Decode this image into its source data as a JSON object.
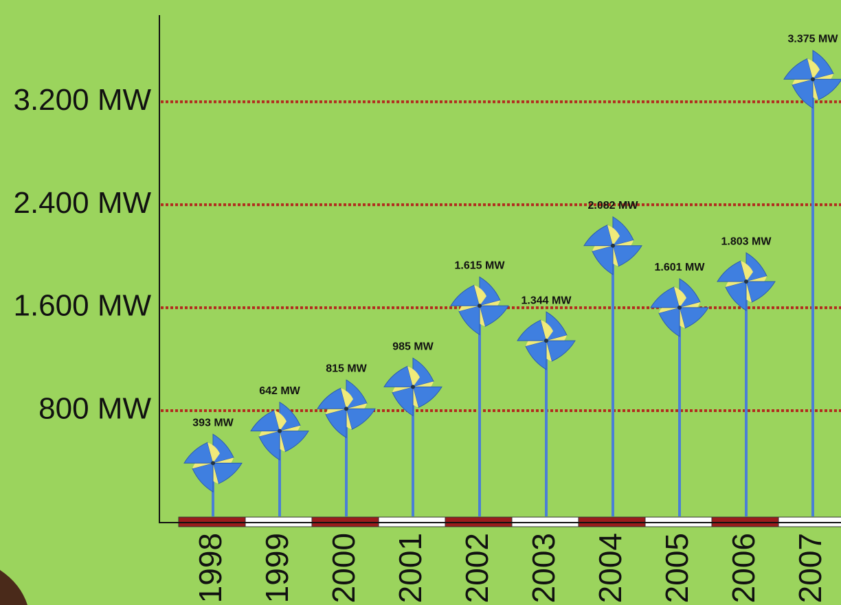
{
  "chart_data": {
    "type": "pinwheel",
    "categories": [
      "1998",
      "1999",
      "2000",
      "2001",
      "2002",
      "2003",
      "2004",
      "2005",
      "2006",
      "2007"
    ],
    "values": [
      393,
      642,
      815,
      985,
      1615,
      1344,
      2082,
      1601,
      1803,
      3375
    ],
    "value_labels": [
      "393 MW",
      "642 MW",
      "815 MW",
      "985 MW",
      "1.615 MW",
      "1.344 MW",
      "2.082 MW",
      "1.601 MW",
      "1.803 MW",
      "3.375 MW"
    ],
    "ylim": [
      0,
      3900
    ],
    "yticks": [
      {
        "value": 800,
        "label": "800 MW"
      },
      {
        "value": 1600,
        "label": "1.600 MW"
      },
      {
        "value": 2400,
        "label": "2.400 MW"
      },
      {
        "value": 3200,
        "label": "3.200 MW"
      }
    ],
    "grid": true,
    "color": "#4a7fd6"
  }
}
